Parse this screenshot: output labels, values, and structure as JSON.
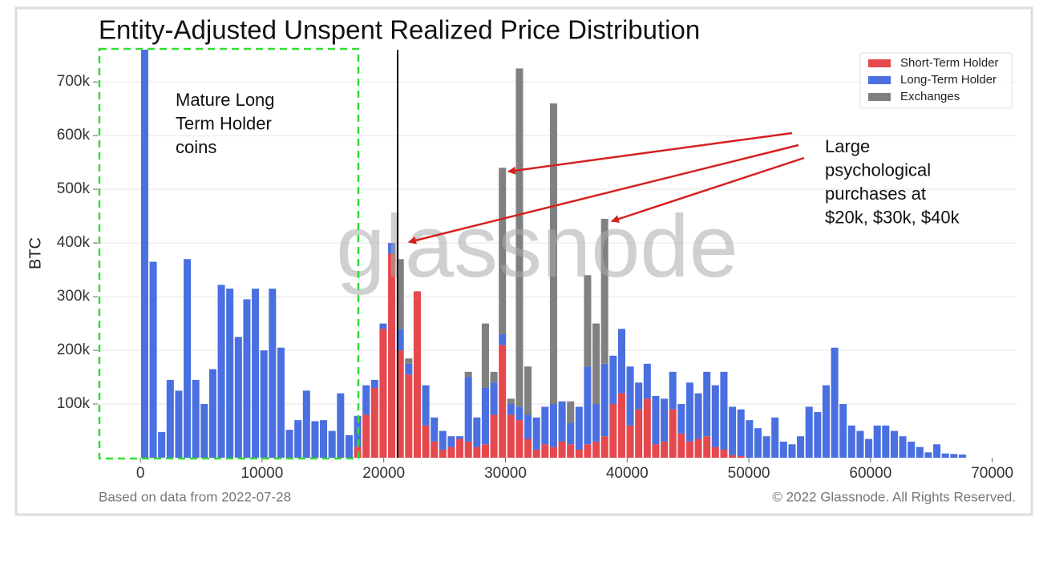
{
  "chart_data": {
    "type": "histogram",
    "title": "Entity-Adjusted Unspent Realized Price Distribution",
    "ylabel": "BTC",
    "watermark": "glassnode",
    "footer_left": "Based on data from 2022-07-28",
    "footer_right": "© 2022 Glassnode. All Rights Reserved.",
    "annotations": [
      {
        "lines": [
          "Mature Long",
          "Term Holder",
          "coins"
        ]
      },
      {
        "lines": [
          "Large",
          "psychological",
          "purchases at",
          "$20k, $30k, $40k"
        ]
      }
    ],
    "stacked": true,
    "legend": "upper right",
    "grid": true,
    "xlim": [
      -3500,
      72000
    ],
    "ylim": [
      0,
      760000
    ],
    "xticks": [
      0,
      10000,
      20000,
      30000,
      40000,
      50000,
      60000,
      70000
    ],
    "yticks": [
      {
        "value": 100000,
        "label": "100k"
      },
      {
        "value": 200000,
        "label": "200k"
      },
      {
        "value": 300000,
        "label": "300k"
      },
      {
        "value": 400000,
        "label": "400k"
      },
      {
        "value": 500000,
        "label": "500k"
      },
      {
        "value": 600000,
        "label": "600k"
      },
      {
        "value": 700000,
        "label": "700k"
      }
    ],
    "bins": [
      0,
      700,
      1400,
      2100,
      2800,
      3500,
      4200,
      4900,
      5600,
      6300,
      7000,
      7700,
      8400,
      9100,
      9800,
      10500,
      11200,
      11900,
      12600,
      13300,
      14000,
      14700,
      15400,
      16100,
      16800,
      17500,
      18200,
      18900,
      19600,
      20300,
      21000,
      21700,
      22400,
      23100,
      23800,
      24500,
      25200,
      25900,
      26600,
      27300,
      28000,
      28700,
      29400,
      30100,
      30800,
      31500,
      32200,
      32900,
      33600,
      34300,
      35000,
      35700,
      36400,
      37100,
      37800,
      38500,
      39200,
      39900,
      40600,
      41300,
      42000,
      42700,
      43400,
      44100,
      44800,
      45500,
      46200,
      46900,
      47600,
      48300,
      49000,
      49700,
      50400,
      51100,
      51800,
      52500,
      53200,
      53900,
      54600,
      55300,
      56000,
      56700,
      57400,
      58100,
      58800,
      59500,
      60200,
      60900,
      61600,
      62300,
      63000,
      63700,
      64400,
      65100,
      65800,
      66500,
      67200,
      67900,
      68600,
      69300,
      70000
    ],
    "series": [
      {
        "name": "Short-Term Holder",
        "color": "#e5484d",
        "values": [
          0,
          0,
          0,
          0,
          0,
          0,
          0,
          0,
          0,
          0,
          0,
          0,
          0,
          0,
          0,
          0,
          0,
          0,
          0,
          0,
          0,
          0,
          0,
          0,
          0,
          20000,
          80000,
          130000,
          240000,
          380000,
          200000,
          155000,
          310000,
          60000,
          30000,
          15000,
          20000,
          35000,
          30000,
          20000,
          25000,
          80000,
          210000,
          80000,
          70000,
          35000,
          15000,
          25000,
          20000,
          30000,
          25000,
          15000,
          25000,
          30000,
          40000,
          100000,
          120000,
          60000,
          90000,
          110000,
          25000,
          30000,
          90000,
          45000,
          30000,
          35000,
          40000,
          20000,
          15000,
          5000,
          3000,
          0,
          0,
          0,
          0,
          0,
          0,
          0,
          0,
          0,
          0,
          0,
          0,
          0,
          0,
          0,
          0,
          0,
          0,
          0,
          0,
          0,
          0,
          0,
          0,
          0,
          0,
          0,
          0,
          0
        ]
      },
      {
        "name": "Long-Term Holder",
        "color": "#4a6fe0",
        "values": [
          760000,
          365000,
          48000,
          145000,
          125000,
          370000,
          145000,
          100000,
          165000,
          322000,
          315000,
          225000,
          295000,
          315000,
          200000,
          315000,
          205000,
          52000,
          70000,
          125000,
          68000,
          70000,
          50000,
          120000,
          42000,
          58000,
          55000,
          15000,
          10000,
          20000,
          40000,
          20000,
          0,
          75000,
          45000,
          35000,
          20000,
          5000,
          120000,
          55000,
          105000,
          60000,
          20000,
          20000,
          25000,
          45000,
          60000,
          70000,
          80000,
          75000,
          40000,
          80000,
          145000,
          70000,
          135000,
          90000,
          120000,
          110000,
          50000,
          65000,
          90000,
          80000,
          70000,
          55000,
          110000,
          85000,
          120000,
          115000,
          145000,
          90000,
          87000,
          70000,
          55000,
          40000,
          75000,
          30000,
          25000,
          40000,
          95000,
          85000,
          135000,
          205000,
          100000,
          60000,
          50000,
          35000,
          60000,
          60000,
          50000,
          40000,
          30000,
          20000,
          10000,
          25000,
          8000,
          7000,
          6000,
          0,
          0,
          0
        ]
      },
      {
        "name": "Exchanges",
        "color": "#808080",
        "values": [
          0,
          0,
          0,
          0,
          0,
          0,
          0,
          0,
          0,
          0,
          0,
          0,
          0,
          0,
          0,
          0,
          0,
          0,
          0,
          0,
          0,
          0,
          0,
          0,
          0,
          0,
          0,
          0,
          0,
          0,
          130000,
          10000,
          0,
          0,
          0,
          0,
          0,
          0,
          10000,
          0,
          120000,
          20000,
          310000,
          10000,
          630000,
          90000,
          0,
          0,
          560000,
          0,
          40000,
          0,
          170000,
          150000,
          270000,
          0,
          0,
          0,
          0,
          0,
          0,
          0,
          0,
          0,
          0,
          0,
          0,
          0,
          0,
          0,
          0,
          0,
          0,
          0,
          0,
          0,
          0,
          0,
          0,
          0,
          0,
          0,
          0,
          0,
          0,
          0,
          0,
          0,
          0,
          0,
          0,
          0,
          0,
          0,
          0,
          0,
          0,
          0,
          0,
          0
        ]
      }
    ]
  }
}
